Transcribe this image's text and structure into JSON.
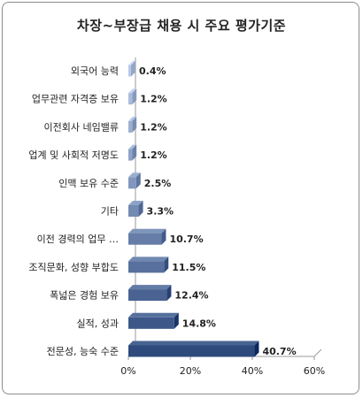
{
  "chart_data": {
    "type": "bar",
    "orientation": "horizontal",
    "title": "차장~부장급 채용 시 주요 평가기준",
    "xlabel": "",
    "ylabel": "",
    "categories": [
      "외국어 능력",
      "업무관련 자격증 보유",
      "이전회사 네임밸류",
      "업계 및 사회적 저명도",
      "인맥 보유 수준",
      "기타",
      "이전 경력의 업무 …",
      "조직문화, 성향 부합도",
      "폭넓은 경험 보유",
      "실적, 성과",
      "전문성, 능숙 수준"
    ],
    "values": [
      0.4,
      1.2,
      1.2,
      1.2,
      2.5,
      3.3,
      10.7,
      11.5,
      12.4,
      14.8,
      40.7
    ],
    "value_labels": [
      "0.4%",
      "1.2%",
      "1.2%",
      "1.2%",
      "2.5%",
      "3.3%",
      "10.7%",
      "11.5%",
      "12.4%",
      "14.8%",
      "40.7%"
    ],
    "xlim": [
      0,
      60
    ],
    "ticks": [
      0,
      20,
      40,
      60
    ],
    "tick_labels": [
      "0%",
      "20%",
      "40%",
      "60%"
    ],
    "grid": false,
    "legend": "none",
    "colors": {
      "bar_light": "#b8c9e6",
      "bar_dark": "#2e4a7d",
      "bar_side": "#1f3560"
    }
  }
}
